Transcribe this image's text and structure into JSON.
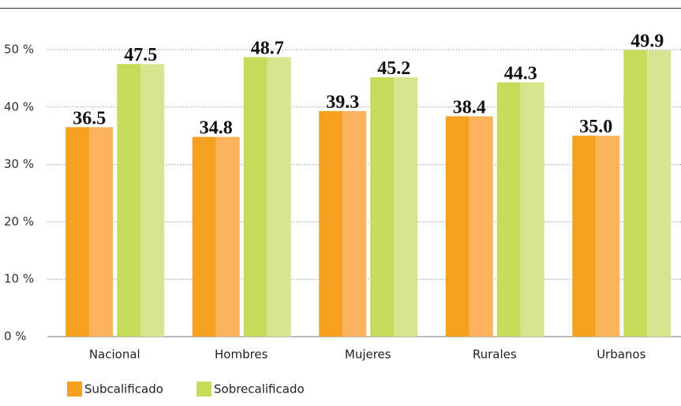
{
  "chart_data": {
    "type": "bar",
    "categories": [
      "Nacional",
      "Hombres",
      "Mujeres",
      "Rurales",
      "Urbanos"
    ],
    "series": [
      {
        "name": "Subcalificado",
        "color": "#f5a01e",
        "values": [
          36.5,
          34.8,
          39.3,
          38.4,
          35.0
        ],
        "value_labels": [
          "36.5",
          "34.8",
          "39.3",
          "38.4",
          "35.0"
        ]
      },
      {
        "name": "Sobrecalificado",
        "color": "#c5dc5a",
        "values": [
          47.5,
          48.7,
          45.2,
          44.3,
          49.9
        ],
        "value_labels": [
          "47.5",
          "48.7",
          "45.2",
          "44.3",
          "49.9"
        ]
      }
    ],
    "ylim": [
      0,
      50
    ],
    "yticks": [
      {
        "value": 0,
        "label": "0 %"
      },
      {
        "value": 10,
        "label": "10 %"
      },
      {
        "value": 20,
        "label": "20 %"
      },
      {
        "value": 30,
        "label": "30 %"
      },
      {
        "value": 40,
        "label": "40 %"
      },
      {
        "value": 50,
        "label": "50 %"
      }
    ],
    "grid": true
  }
}
